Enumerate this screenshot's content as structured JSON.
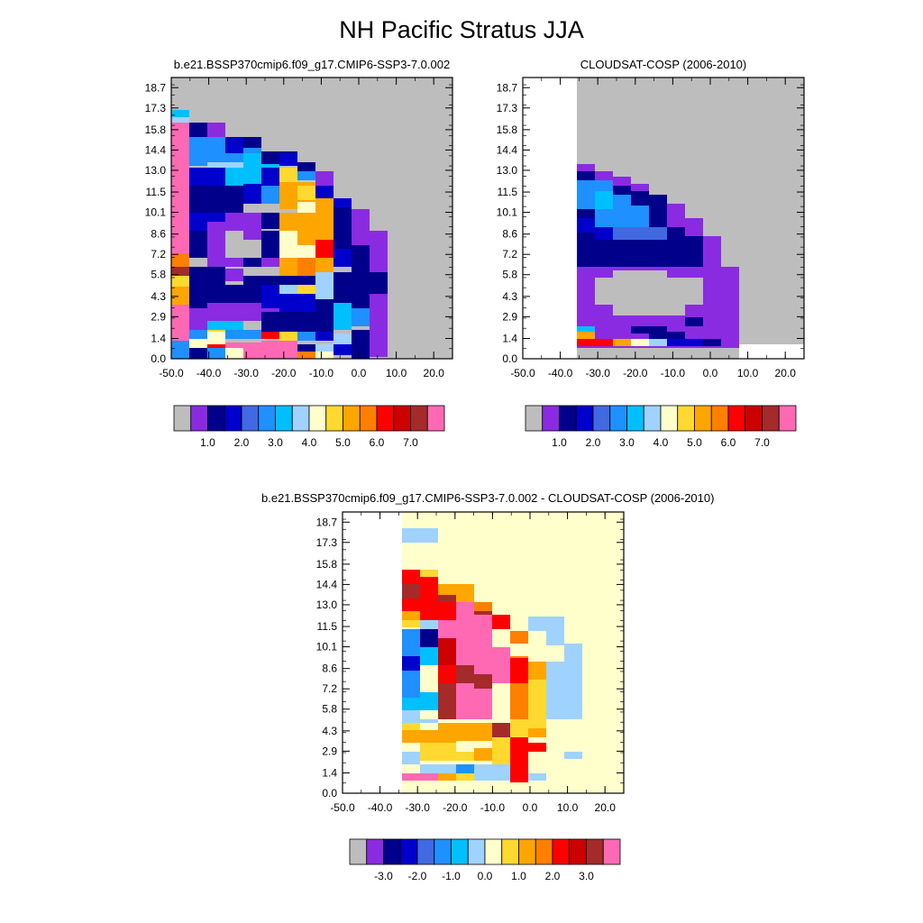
{
  "title": "NH Pacific Stratus JJA",
  "colors": {
    "main": [
      "#bdbdbd",
      "#8a2be2",
      "#00008b",
      "#0000cd",
      "#4169e1",
      "#1e90ff",
      "#00bfff",
      "#a0d2ff",
      "#ffffcc",
      "#ffd92f",
      "#ffa500",
      "#ff7f00",
      "#ff0000",
      "#cd0000",
      "#a52a2a",
      "#ff69b4"
    ],
    "diff": [
      "#bdbdbd",
      "#8a2be2",
      "#00008b",
      "#0000cd",
      "#4169e1",
      "#1e90ff",
      "#00bfff",
      "#a0d2ff",
      "#ffffcc",
      "#ffd92f",
      "#ffa500",
      "#ff7f00",
      "#ff0000",
      "#cd0000",
      "#a52a2a",
      "#ff69b4"
    ]
  },
  "chart_data": [
    {
      "type": "heatmap",
      "title": "b.e21.BSSP370cmip6.f09_g17.CMIP6-SSP3-7.0.002",
      "xticks": [
        "-50.0",
        "-40.0",
        "-30.0",
        "-20.0",
        "-10.0",
        "0.0",
        "10.0",
        "20.0"
      ],
      "yticks": [
        "0.0",
        "1.4",
        "2.9",
        "4.3",
        "5.8",
        "7.2",
        "8.6",
        "10.1",
        "11.5",
        "13.0",
        "14.4",
        "15.8",
        "17.3",
        "18.7"
      ],
      "xlim": [
        -50,
        25
      ],
      "ylim": [
        0,
        19.4
      ],
      "colorbar_labels": [
        "1.0",
        "2.0",
        "3.0",
        "4.0",
        "5.0",
        "6.0",
        "7.0"
      ]
    },
    {
      "type": "heatmap",
      "title": "CLOUDSAT-COSP (2006-2010)",
      "xticks": [
        "-50.0",
        "-40.0",
        "-30.0",
        "-20.0",
        "-10.0",
        "0.0",
        "10.0",
        "20.0"
      ],
      "yticks": [
        "0.0",
        "1.4",
        "2.9",
        "4.3",
        "5.8",
        "7.2",
        "8.6",
        "10.1",
        "11.5",
        "13.0",
        "14.4",
        "15.8",
        "17.3",
        "18.7"
      ],
      "xlim": [
        -50,
        25
      ],
      "ylim": [
        0,
        19.4
      ],
      "colorbar_labels": [
        "1.0",
        "2.0",
        "3.0",
        "4.0",
        "5.0",
        "6.0",
        "7.0"
      ]
    },
    {
      "type": "heatmap",
      "title": "b.e21.BSSP370cmip6.f09_g17.CMIP6-SSP3-7.0.002 - CLOUDSAT-COSP (2006-2010)",
      "xticks": [
        "-50.0",
        "-40.0",
        "-30.0",
        "-20.0",
        "-10.0",
        "0.0",
        "10.0",
        "20.0"
      ],
      "yticks": [
        "0.0",
        "1.4",
        "2.9",
        "4.3",
        "5.8",
        "7.2",
        "8.6",
        "10.1",
        "11.5",
        "13.0",
        "14.4",
        "15.8",
        "17.3",
        "18.7"
      ],
      "xlim": [
        -50,
        25
      ],
      "ylim": [
        0,
        19.4
      ],
      "colorbar_labels": [
        "-3.0",
        "-2.0",
        "-1.0",
        "0.0",
        "1.0",
        "2.0",
        "3.0"
      ]
    }
  ]
}
